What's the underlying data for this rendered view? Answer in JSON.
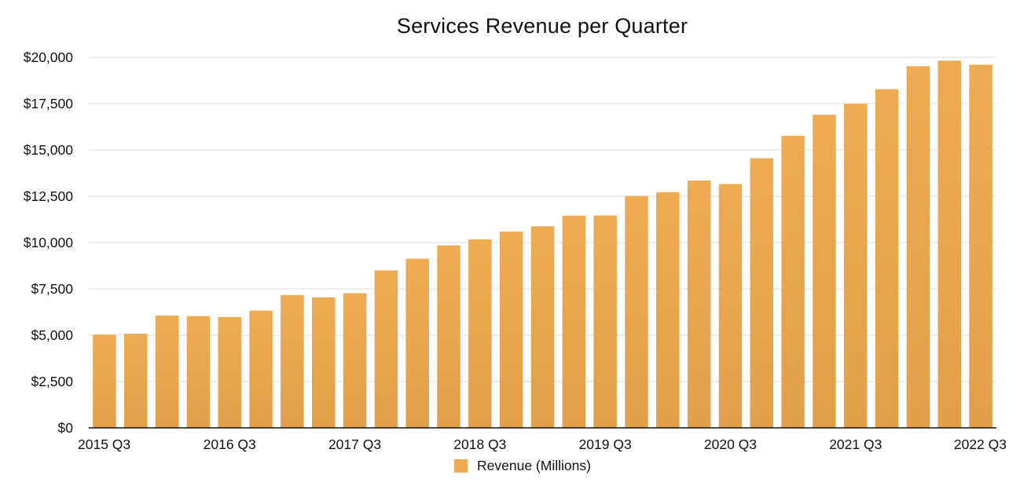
{
  "colors": {
    "bar": "#eeab52",
    "bar_dark": "#e2a04a",
    "grid": "#dcdcdc",
    "axis": "#111111"
  },
  "chart_data": {
    "type": "bar",
    "title": "Services Revenue per Quarter",
    "xlabel": "",
    "ylabel": "",
    "ylim": [
      0,
      20000
    ],
    "y_ticks": [
      0,
      2500,
      5000,
      7500,
      10000,
      12500,
      15000,
      17500,
      20000
    ],
    "y_tick_labels": [
      "$0",
      "$2,500",
      "$5,000",
      "$7,500",
      "$10,000",
      "$12,500",
      "$15,000",
      "$17,500",
      "$20,000"
    ],
    "grid": true,
    "legend_position": "bottom-center",
    "categories": [
      "2015 Q3",
      "2015 Q4",
      "2016 Q1",
      "2016 Q2",
      "2016 Q3",
      "2016 Q4",
      "2017 Q1",
      "2017 Q2",
      "2017 Q3",
      "2017 Q4",
      "2018 Q1",
      "2018 Q2",
      "2018 Q3",
      "2018 Q4",
      "2019 Q1",
      "2019 Q2",
      "2019 Q3",
      "2019 Q4",
      "2020 Q1",
      "2020 Q2",
      "2020 Q3",
      "2020 Q4",
      "2021 Q1",
      "2021 Q2",
      "2021 Q3",
      "2021 Q4",
      "2022 Q1",
      "2022 Q2",
      "2022 Q3"
    ],
    "x_tick_labels": [
      {
        "index": 0,
        "label": "2015 Q3"
      },
      {
        "index": 4,
        "label": "2016 Q3"
      },
      {
        "index": 8,
        "label": "2017 Q3"
      },
      {
        "index": 12,
        "label": "2018 Q3"
      },
      {
        "index": 16,
        "label": "2019 Q3"
      },
      {
        "index": 20,
        "label": "2020 Q3"
      },
      {
        "index": 24,
        "label": "2021 Q3"
      },
      {
        "index": 28,
        "label": "2022 Q3"
      }
    ],
    "series": [
      {
        "name": "Revenue (Millions)",
        "values": [
          5030,
          5080,
          6060,
          6030,
          5980,
          6330,
          7170,
          7040,
          7270,
          8500,
          9130,
          9850,
          10170,
          10590,
          10880,
          11450,
          11460,
          12510,
          12720,
          13350,
          13160,
          14550,
          15760,
          16900,
          17490,
          18280,
          19520,
          19820,
          19600
        ]
      }
    ]
  }
}
